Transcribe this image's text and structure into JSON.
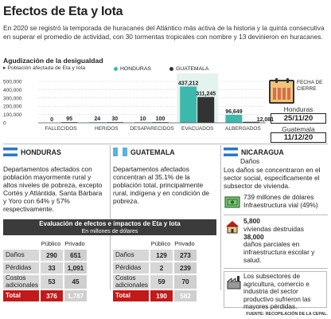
{
  "title": "Efectos de Eta y Iota",
  "intro": "En 2020 se registró la temporada de huracanes del Atlántico más activa de la historia y la quinta consecutiva en superar el promedio de actividad, con 30 tormentas tropicales con nombre y 13 devinieron en huracanes.",
  "colors": {
    "honduras": "#3db8ad",
    "guatemala": "#333333",
    "highlight": "#c21a1a",
    "calendar": "#f3c37a"
  },
  "chart_data": {
    "type": "bar",
    "title": "Agudización de la desigualdad",
    "ylabel": "Población afectada de Eta y Iota",
    "categories": [
      "FALLECIDOS",
      "HERIDOS",
      "DESAPARECIDOS",
      "EVACUADOS",
      "ALBERGADOS"
    ],
    "series": [
      {
        "name": "HONDURAS",
        "values": [
          0,
          24,
          10,
          437212,
          96649
        ]
      },
      {
        "name": "GUATEMALA",
        "values": [
          95,
          30,
          100,
          311245,
          12081
        ]
      }
    ],
    "value_labels": {
      "HONDURAS": [
        "0",
        "24",
        "10",
        "437,212",
        "96,649"
      ],
      "GUATEMALA": [
        "95",
        "30",
        "100",
        "311,245",
        "12,081"
      ]
    },
    "yticks": [
      "500,000",
      "400,000",
      "300,000",
      "200,000",
      "100,000",
      "0"
    ],
    "ylim": [
      0,
      500000
    ],
    "grid": true,
    "legend": "top-right"
  },
  "calendar": {
    "label": "FECHA DE CIERRE",
    "honduras_name": "Honduras",
    "honduras_date": "25/11/20",
    "guatemala_name": "Guatemala",
    "guatemala_date": "11/12/20"
  },
  "honduras": {
    "name": "HONDURAS",
    "text": "Departamentos afectados con población mayormente rural y altos niveles de pobreza, excepto Cortés y Atlántida. Santa Bárbara y Yoro con 64% y 57% respectivamente."
  },
  "guatemala": {
    "name": "GUATEMALA",
    "text": "Departamentos afectados concentran al 35.1% de la población total, principalmente rural, indígena y en condición de pobreza."
  },
  "nicaragua": {
    "name": "NICARAGUA",
    "subtitle": "Daños",
    "text": "Los daños se concentraron en el sector social, especificamente el subsector de vivienda.",
    "item1": "739 millones de dólares Infraestructura vial (49%)",
    "item2_num1": "5,800",
    "item2_txt1": "viviendas destruidas",
    "item2_num2": "38,000",
    "item2_txt2": "daños parciales en infraestructura escolar y salud.",
    "item3": "Los subsectores de agricultura, comercio e industria del sector productivo sufrieron las mayores pérdidas."
  },
  "table": {
    "title": "Evaluación de efectos e impactos de Eta y Iota",
    "subtitle": "En millones de dólares",
    "col_public": "Público",
    "col_private": "Privado",
    "honduras": [
      {
        "label": "Daños",
        "public": "290",
        "private": "651"
      },
      {
        "label": "Pérdidas",
        "public": "33",
        "private": "1,091"
      },
      {
        "label": "Costos adicionales",
        "public": "53",
        "private": "45"
      },
      {
        "label": "Total",
        "public": "376",
        "private": "1,787"
      }
    ],
    "guatemala": [
      {
        "label": "Daños",
        "public": "129",
        "private": "273"
      },
      {
        "label": "Pérdidas",
        "public": "2",
        "private": "239"
      },
      {
        "label": "Costos adicionales",
        "public": "59",
        "private": "70"
      },
      {
        "label": "Total",
        "public": "190",
        "private": "582"
      }
    ]
  },
  "source": "FUENTE: RECOPILACIÓN DE LA CEPAL."
}
